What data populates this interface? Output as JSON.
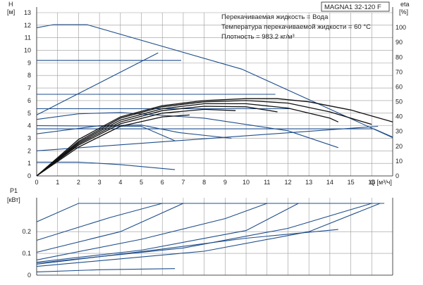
{
  "model": "MAGNA1 32-120 F",
  "info_lines": [
    "Перекачиваемая жидкость = Вода",
    "Температура перекачиваемой жидкости = 60 °C",
    "Плотность = 983.2 кг/м³"
  ],
  "chart_data": [
    {
      "type": "line",
      "title": "MAGNA1 32-120 F",
      "xlabel": "Q [м³/ч]",
      "ylabel": "H [м]",
      "ylabel_right": "eta [%]",
      "xlim": [
        0,
        17
      ],
      "ylim": [
        0,
        13
      ],
      "y2lim": [
        0,
        110
      ],
      "xticks": [
        0,
        1,
        2,
        3,
        4,
        5,
        6,
        7,
        8,
        9,
        10,
        11,
        12,
        13,
        14,
        15,
        16
      ],
      "yticks": [
        0,
        1,
        2,
        3,
        4,
        5,
        6,
        7,
        8,
        9,
        10,
        11,
        12,
        13
      ],
      "y2ticks": [
        0,
        10,
        20,
        30,
        40,
        50,
        60,
        70,
        80,
        90,
        100
      ],
      "grid": true,
      "series": [
        {
          "color": "#1f4e8c",
          "points": [
            [
              0,
              11.8
            ],
            [
              0.8,
              12.05
            ],
            [
              2.4,
              12.05
            ],
            [
              9.8,
              8.5
            ],
            [
              17,
              3.05
            ]
          ]
        },
        {
          "color": "#1f4e8c",
          "points": [
            [
              0,
              9.2
            ],
            [
              6.9,
              9.2
            ]
          ]
        },
        {
          "color": "#1f4e8c",
          "points": [
            [
              0,
              6.5
            ],
            [
              11.4,
              6.5
            ]
          ]
        },
        {
          "color": "#1f4e8c",
          "points": [
            [
              0,
              5.35
            ],
            [
              12.1,
              5.35
            ]
          ]
        },
        {
          "color": "#1f4e8c",
          "points": [
            [
              0,
              3.75
            ],
            [
              16.1,
              3.75
            ],
            [
              17,
              3.1
            ]
          ]
        },
        {
          "color": "#1f4e8c",
          "points": [
            [
              0,
              4.85
            ],
            [
              5.8,
              9.8
            ]
          ]
        },
        {
          "color": "#1f4e8c",
          "points": [
            [
              0,
              2.0
            ],
            [
              16.3,
              3.95
            ]
          ]
        },
        {
          "color": "#1f4e8c",
          "points": [
            [
              0,
              4.5
            ],
            [
              2,
              4.95
            ],
            [
              4,
              5.05
            ],
            [
              8,
              4.6
            ],
            [
              12,
              3.6
            ],
            [
              14.4,
              2.25
            ]
          ]
        },
        {
          "color": "#1f4e8c",
          "points": [
            [
              0,
              3.35
            ],
            [
              3,
              4.0
            ],
            [
              5,
              4.05
            ],
            [
              6.8,
              3.45
            ],
            [
              9.3,
              3.0
            ]
          ]
        },
        {
          "color": "#1f4e8c",
          "points": [
            [
              0,
              1.1
            ],
            [
              2,
              1.1
            ],
            [
              4,
              0.9
            ],
            [
              6.6,
              0.5
            ]
          ]
        },
        {
          "color": "#1f4e8c",
          "points": [
            [
              0,
              4.0
            ],
            [
              5,
              3.95
            ],
            [
              6.6,
              2.8
            ]
          ]
        },
        {
          "color": "#111111",
          "points": [
            [
              0,
              0
            ],
            [
              2,
              2.9
            ],
            [
              4,
              4.7
            ],
            [
              6,
              5.6
            ],
            [
              8,
              6.0
            ],
            [
              10,
              6.15
            ],
            [
              11.5,
              6.15
            ],
            [
              13,
              5.9
            ],
            [
              15,
              5.25
            ],
            [
              17,
              4.3
            ]
          ]
        },
        {
          "color": "#111111",
          "points": [
            [
              0,
              0
            ],
            [
              2,
              2.75
            ],
            [
              4,
              4.6
            ],
            [
              6,
              5.5
            ],
            [
              8,
              5.9
            ],
            [
              10,
              6.0
            ],
            [
              12,
              5.8
            ],
            [
              14,
              5.1
            ],
            [
              16,
              4.1
            ]
          ]
        },
        {
          "color": "#111111",
          "points": [
            [
              0,
              0
            ],
            [
              2,
              2.65
            ],
            [
              4,
              4.45
            ],
            [
              6,
              5.35
            ],
            [
              8,
              5.75
            ],
            [
              10,
              5.75
            ],
            [
              12,
              5.4
            ],
            [
              14,
              4.6
            ],
            [
              14.4,
              4.3
            ]
          ]
        },
        {
          "color": "#111111",
          "points": [
            [
              0,
              0
            ],
            [
              2,
              2.55
            ],
            [
              4,
              4.3
            ],
            [
              6,
              5.2
            ],
            [
              8,
              5.55
            ],
            [
              10,
              5.5
            ],
            [
              11.5,
              5.1
            ]
          ]
        },
        {
          "color": "#111111",
          "points": [
            [
              0,
              0
            ],
            [
              2,
              2.45
            ],
            [
              4,
              4.15
            ],
            [
              6,
              5.0
            ],
            [
              8,
              5.3
            ],
            [
              9.5,
              5.2
            ]
          ]
        },
        {
          "color": "#111111",
          "points": [
            [
              0,
              0
            ],
            [
              2,
              2.3
            ],
            [
              4,
              3.95
            ],
            [
              6,
              4.7
            ],
            [
              7.3,
              4.85
            ]
          ]
        }
      ]
    },
    {
      "type": "line",
      "xlabel": "",
      "ylabel": "P1 [кВт]",
      "xlim": [
        0,
        17
      ],
      "ylim": [
        0,
        0.33
      ],
      "yticks": [
        0,
        0.1,
        0.2
      ],
      "grid": true,
      "series": [
        {
          "color": "#1f4e8c",
          "points": [
            [
              0,
              0.245
            ],
            [
              2,
              0.33
            ],
            [
              16.6,
              0.33
            ]
          ]
        },
        {
          "color": "#1f4e8c",
          "points": [
            [
              0,
              0.16
            ],
            [
              3.5,
              0.265
            ],
            [
              6,
              0.33
            ]
          ]
        },
        {
          "color": "#1f4e8c",
          "points": [
            [
              0,
              0.105
            ],
            [
              4,
              0.2
            ],
            [
              7,
              0.33
            ]
          ]
        },
        {
          "color": "#1f4e8c",
          "points": [
            [
              0,
              0.07
            ],
            [
              5,
              0.165
            ],
            [
              9,
              0.26
            ],
            [
              11,
              0.33
            ]
          ]
        },
        {
          "color": "#1f4e8c",
          "points": [
            [
              0,
              0.06
            ],
            [
              5,
              0.115
            ],
            [
              10,
              0.205
            ],
            [
              12.5,
              0.33
            ]
          ]
        },
        {
          "color": "#1f4e8c",
          "points": [
            [
              0,
              0.05
            ],
            [
              6,
              0.12
            ],
            [
              10,
              0.17
            ],
            [
              14.4,
              0.21
            ]
          ]
        },
        {
          "color": "#1f4e8c",
          "points": [
            [
              0,
              0.055
            ],
            [
              7,
              0.125
            ],
            [
              12,
              0.215
            ],
            [
              16,
              0.33
            ]
          ]
        },
        {
          "color": "#1f4e8c",
          "points": [
            [
              0,
              0.04
            ],
            [
              8,
              0.11
            ],
            [
              13,
              0.2
            ],
            [
              16.4,
              0.33
            ]
          ]
        },
        {
          "color": "#1f4e8c",
          "points": [
            [
              0,
              0.015
            ],
            [
              3,
              0.025
            ],
            [
              6.6,
              0.03
            ]
          ]
        }
      ]
    }
  ]
}
